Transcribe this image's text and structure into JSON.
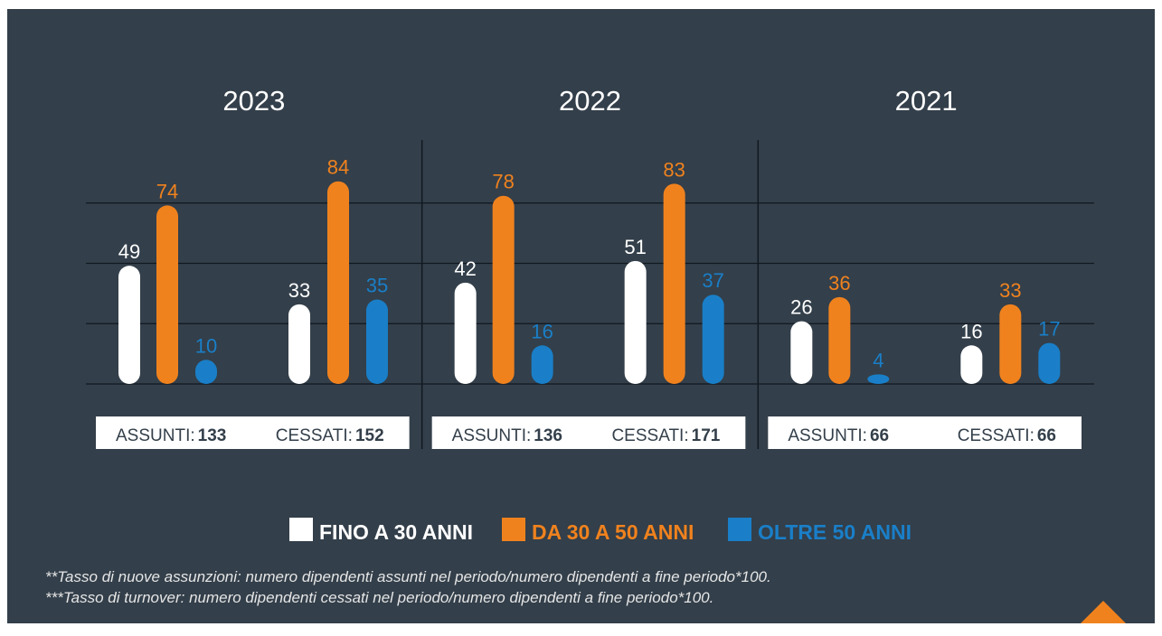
{
  "chart_data": {
    "type": "bar",
    "panels": [
      {
        "title": "2023",
        "categories": [
          "ASSUNTI:",
          "CESSATI:"
        ],
        "totals": [
          133,
          152
        ]
      },
      {
        "title": "2022",
        "categories": [
          "ASSUNTI:",
          "CESSATI:"
        ],
        "totals": [
          136,
          171
        ]
      },
      {
        "title": "2021",
        "categories": [
          "ASSUNTI:",
          "CESSATI:"
        ],
        "totals": [
          66,
          66
        ]
      }
    ],
    "series": [
      {
        "name": "FINO A 30 ANNI",
        "color": "#ffffff",
        "values": [
          49,
          33,
          42,
          51,
          26,
          16
        ]
      },
      {
        "name": "DA 30 A 50 ANNI",
        "color": "#f0821e",
        "values": [
          74,
          84,
          78,
          83,
          36,
          33
        ]
      },
      {
        "name": "OLTRE 50 ANNI",
        "color": "#1a7fc8",
        "values": [
          10,
          35,
          16,
          37,
          4,
          17
        ]
      }
    ],
    "ylim": [
      0,
      100
    ],
    "yticks": [
      0,
      25,
      50,
      75
    ],
    "grid": true,
    "notes": [
      "**Tasso di nuove assunzioni: numero dipendenti assunti nel periodo/numero dipendenti a fine periodo*100.",
      "***Tasso di turnover: numero dipendenti cessati nel periodo/numero dipendenti a fine periodo*100."
    ]
  }
}
